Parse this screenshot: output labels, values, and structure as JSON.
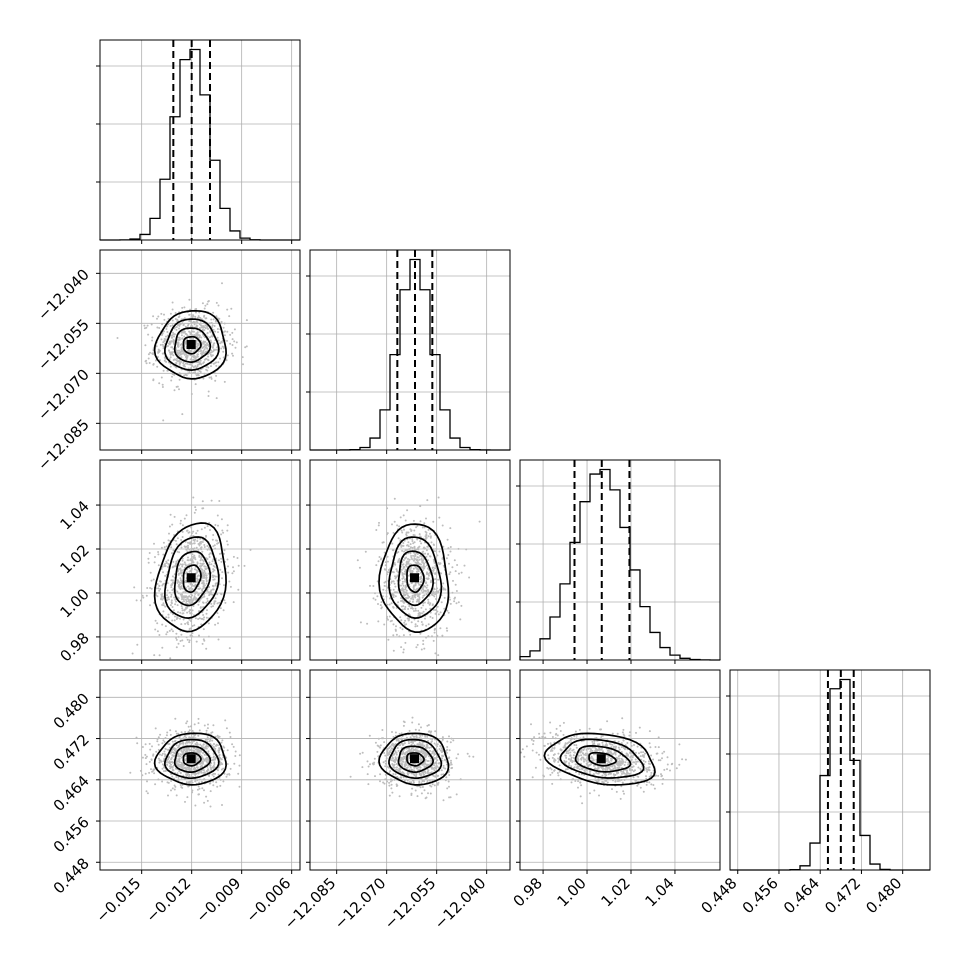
{
  "chart_data": {
    "type": "corner",
    "parameters": [
      {
        "range": [
          -0.0175,
          -0.0055
        ],
        "ticks": [
          -0.015,
          -0.012,
          -0.009,
          -0.006
        ],
        "tick_labels": [
          "−0.015",
          "−0.012",
          "−0.009",
          "−0.006"
        ],
        "mean": -0.012,
        "sd": 0.00105,
        "quantiles": [
          -0.0131,
          -0.012,
          -0.0109
        ]
      },
      {
        "range": [
          -12.093,
          -12.033
        ],
        "ticks": [
          -12.085,
          -12.07,
          -12.055,
          -12.04
        ],
        "tick_labels": [
          "−12.085",
          "−12.070",
          "−12.055",
          "−12.040"
        ],
        "mean": -12.0615,
        "sd": 0.0051,
        "quantiles": [
          -12.0668,
          -12.0615,
          -12.0563
        ]
      },
      {
        "range": [
          0.9695,
          1.0605
        ],
        "ticks": [
          0.98,
          1.0,
          1.02,
          1.04
        ],
        "tick_labels": [
          "0.98",
          "1.00",
          "1.02",
          "1.04"
        ],
        "mean": 1.0067,
        "sd": 0.0123,
        "quantiles": [
          0.9943,
          1.0067,
          1.0193
        ]
      },
      {
        "range": [
          0.4465,
          0.4853
        ],
        "ticks": [
          0.448,
          0.456,
          0.464,
          0.472,
          0.48
        ],
        "tick_labels": [
          "0.448",
          "0.456",
          "0.464",
          "0.472",
          "0.480"
        ],
        "mean": 0.468,
        "sd": 0.0025,
        "quantiles": [
          0.4655,
          0.468,
          0.4705
        ]
      }
    ],
    "correlations": [
      [
        1.0,
        0.02,
        0.18,
        0.02
      ],
      [
        0.02,
        1.0,
        -0.05,
        -0.05
      ],
      [
        0.18,
        -0.05,
        1.0,
        -0.25
      ],
      [
        0.02,
        -0.05,
        -0.25,
        1.0
      ]
    ],
    "contour_levels_sigma": [
      0.5,
      1.0,
      1.5,
      2.0
    ],
    "histogram_bins": 20,
    "grid": true
  }
}
